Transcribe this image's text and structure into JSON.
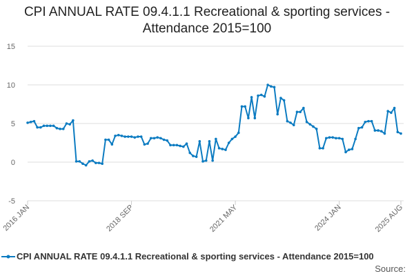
{
  "chart_data": {
    "type": "line",
    "title": "CPI ANNUAL RATE 09.4.1.1 Recreational & sporting services - Attendance 2015=100",
    "xlabel": "",
    "ylabel": "",
    "ylim": [
      -5,
      15
    ],
    "yticks": [
      "-5",
      "0",
      "5",
      "10",
      "15"
    ],
    "xtick_labels": [
      {
        "label": "2016 JAN",
        "index": 0
      },
      {
        "label": "2018 SEP",
        "index": 32
      },
      {
        "label": "2021 MAY",
        "index": 64
      },
      {
        "label": "2024 JAN",
        "index": 96
      },
      {
        "label": "2025 AUG",
        "index": 115
      }
    ],
    "start": "2016 JAN",
    "end": "2025 AUG",
    "frequency": "monthly",
    "series": [
      {
        "name": "CPI ANNUAL RATE 09.4.1.1 Recreational & sporting services - Attendance 2015=100",
        "color": "#0b7bc1",
        "values": [
          5.1,
          5.2,
          5.3,
          4.5,
          4.5,
          4.7,
          4.7,
          4.7,
          4.7,
          4.4,
          4.3,
          4.3,
          5.0,
          4.9,
          5.4,
          0.1,
          0.1,
          -0.2,
          -0.4,
          0.1,
          0.2,
          -0.1,
          -0.1,
          -0.2,
          2.9,
          2.9,
          2.3,
          3.4,
          3.5,
          3.4,
          3.3,
          3.3,
          3.3,
          3.2,
          3.3,
          3.3,
          2.3,
          2.4,
          3.1,
          3.1,
          3.2,
          3.1,
          2.9,
          2.8,
          2.2,
          2.2,
          2.2,
          2.1,
          2.0,
          2.4,
          1.2,
          0.8,
          0.7,
          2.7,
          0.1,
          0.2,
          2.7,
          0.2,
          3.0,
          1.8,
          1.7,
          1.6,
          2.5,
          3.0,
          3.3,
          3.8,
          7.2,
          7.2,
          5.7,
          8.4,
          5.7,
          8.6,
          8.7,
          8.5,
          10.0,
          9.8,
          9.7,
          6.2,
          8.3,
          8.0,
          5.3,
          5.1,
          4.8,
          6.5,
          6.5,
          7.0,
          5.2,
          4.9,
          4.6,
          4.3,
          1.8,
          1.8,
          3.1,
          3.2,
          3.2,
          3.1,
          3.1,
          3.0,
          1.3,
          1.6,
          1.7,
          3.0,
          4.4,
          4.5,
          5.2,
          5.3,
          5.3,
          4.1,
          4.1,
          4.0,
          3.7,
          6.6,
          6.4,
          7.0,
          3.9,
          3.7
        ]
      }
    ],
    "grid": true,
    "legend": "bottom-left",
    "source_label": "Source:"
  }
}
